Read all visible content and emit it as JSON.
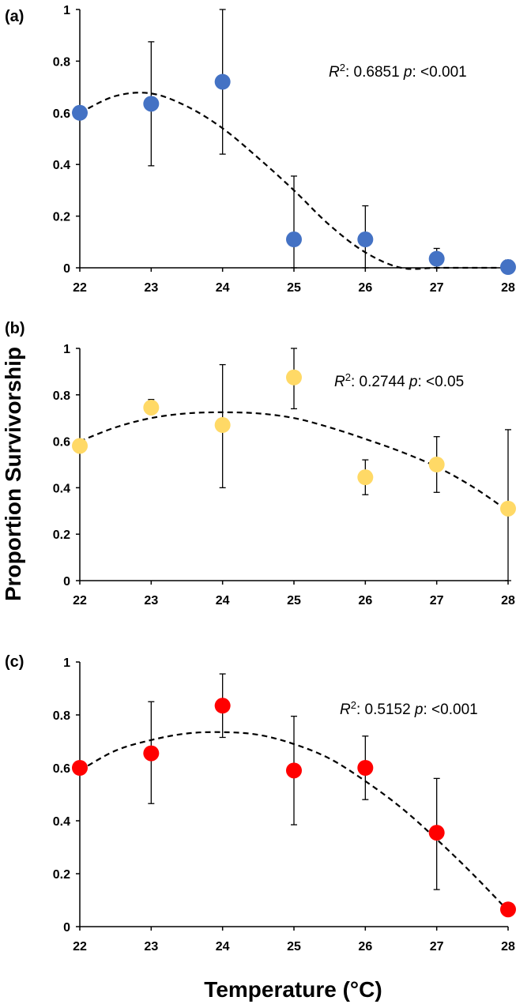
{
  "ylabel": "Proportion Survivorship",
  "xlabel": "Temperature (°C)",
  "chart_data": [
    {
      "type": "scatter",
      "panel_label": "(a)",
      "categories": [
        "22",
        "23",
        "24",
        "25",
        "26",
        "27",
        "28"
      ],
      "x": [
        22,
        23,
        24,
        25,
        26,
        27,
        28
      ],
      "values": [
        0.6,
        0.635,
        0.72,
        0.11,
        0.11,
        0.035,
        0.003
      ],
      "error_upper": [
        0.6,
        0.875,
        1.0,
        0.355,
        0.24,
        0.075,
        0.03
      ],
      "error_lower": [
        0.6,
        0.395,
        0.44,
        0.0,
        0.0,
        0.0,
        0.0
      ],
      "fit_line": {
        "x": [
          22,
          22.5,
          23,
          23.5,
          24,
          24.5,
          25,
          25.5,
          26,
          26.5,
          27,
          27.5,
          28
        ],
        "y": [
          0.6,
          0.665,
          0.675,
          0.625,
          0.54,
          0.425,
          0.3,
          0.165,
          0.06,
          0.0,
          0.0,
          0.0,
          0.0
        ]
      },
      "ylim": [
        0,
        1
      ],
      "yticks": [
        "0",
        "0.2",
        "0.4",
        "0.6",
        "0.8",
        "1"
      ],
      "ytick_values": [
        0,
        0.2,
        0.4,
        0.6,
        0.8,
        1
      ],
      "color": "#4472C4",
      "r2_label": "R",
      "r2_sup": "2",
      "r2_value": ": 0.6851 ",
      "p_label": "p",
      "p_value": ": <0.001"
    },
    {
      "type": "scatter",
      "panel_label": "(b)",
      "categories": [
        "22",
        "23",
        "24",
        "25",
        "26",
        "27",
        "28"
      ],
      "x": [
        22,
        23,
        24,
        25,
        26,
        27,
        28
      ],
      "values": [
        0.58,
        0.745,
        0.67,
        0.875,
        0.445,
        0.5,
        0.31
      ],
      "error_upper": [
        0.58,
        0.78,
        0.93,
        1.0,
        0.52,
        0.62,
        0.65
      ],
      "error_lower": [
        0.58,
        0.745,
        0.4,
        0.74,
        0.37,
        0.38,
        0.0
      ],
      "fit_line": {
        "x": [
          22,
          22.5,
          23,
          23.5,
          24,
          24.5,
          25,
          25.5,
          26,
          26.5,
          27,
          27.5,
          28
        ],
        "y": [
          0.6,
          0.66,
          0.7,
          0.72,
          0.725,
          0.72,
          0.7,
          0.66,
          0.61,
          0.555,
          0.49,
          0.405,
          0.3
        ]
      },
      "ylim": [
        0,
        1
      ],
      "yticks": [
        "0",
        "0.2",
        "0.4",
        "0.6",
        "0.8",
        "1"
      ],
      "ytick_values": [
        0,
        0.2,
        0.4,
        0.6,
        0.8,
        1
      ],
      "color": "#FFD966",
      "r2_label": "R",
      "r2_sup": "2",
      "r2_value": ": 0.2744 ",
      "p_label": "p",
      "p_value": ": <0.05"
    },
    {
      "type": "scatter",
      "panel_label": "(c)",
      "categories": [
        "22",
        "23",
        "24",
        "25",
        "26",
        "27",
        "28"
      ],
      "x": [
        22,
        23,
        24,
        25,
        26,
        27,
        28
      ],
      "values": [
        0.6,
        0.655,
        0.835,
        0.59,
        0.6,
        0.355,
        0.065
      ],
      "error_upper": [
        0.6,
        0.85,
        0.955,
        0.795,
        0.72,
        0.56,
        0.065
      ],
      "error_lower": [
        0.6,
        0.465,
        0.715,
        0.385,
        0.48,
        0.14,
        0.065
      ],
      "fit_line": {
        "x": [
          22,
          22.5,
          23,
          23.5,
          24,
          24.5,
          25,
          25.5,
          26,
          26.5,
          27,
          27.5,
          28
        ],
        "y": [
          0.59,
          0.665,
          0.705,
          0.73,
          0.735,
          0.725,
          0.69,
          0.635,
          0.55,
          0.45,
          0.33,
          0.2,
          0.06
        ]
      },
      "ylim": [
        0,
        1
      ],
      "yticks": [
        "0",
        "0.2",
        "0.4",
        "0.6",
        "0.8",
        "1"
      ],
      "ytick_values": [
        0,
        0.2,
        0.4,
        0.6,
        0.8,
        1
      ],
      "color": "#FF0000",
      "r2_label": "R",
      "r2_sup": "2",
      "r2_value": ": 0.5152 ",
      "p_label": "p",
      "p_value": ": <0.001"
    }
  ]
}
